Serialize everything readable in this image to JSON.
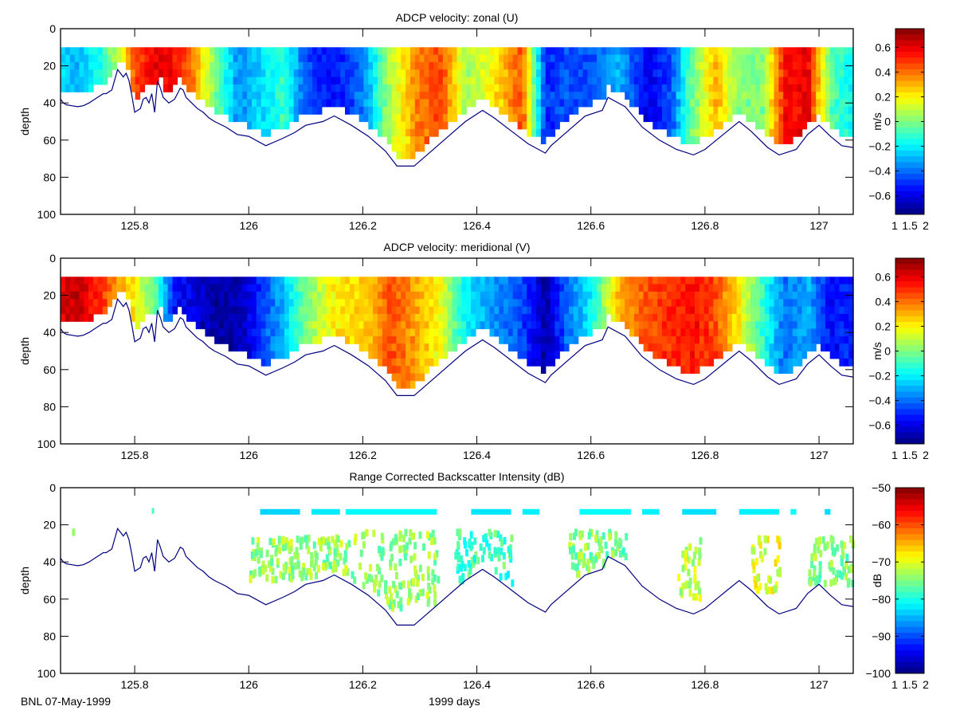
{
  "figure": {
    "footer_left": "BNL 07-May-1999",
    "footer_center": "1999 days"
  },
  "colors": {
    "bottom_line": "#000080",
    "axis": "#000000",
    "background": "#ffffff"
  },
  "chart_data": [
    {
      "type": "heatmap",
      "title": "ADCP velocity: zonal (U)",
      "xlabel": "",
      "ylabel": "depth",
      "xlim": [
        125.67,
        127.06
      ],
      "ylim": [
        100,
        0
      ],
      "y_reversed": true,
      "xticks": [
        125.8,
        126,
        126.2,
        126.4,
        126.6,
        126.8,
        127
      ],
      "xtick_labels": [
        "125.8",
        "126",
        "126.2",
        "126.4",
        "126.6",
        "126.8",
        "127"
      ],
      "yticks": [
        0,
        20,
        40,
        60,
        80,
        100
      ],
      "ytick_labels": [
        "0",
        "20",
        "40",
        "60",
        "80",
        "100"
      ],
      "colormap": "jet",
      "colorbar": {
        "label": "m/s",
        "range": [
          -0.75,
          0.75
        ],
        "ticks": [
          0.6,
          0.4,
          0.2,
          0,
          -0.2,
          -0.4,
          -0.6
        ],
        "tick_labels": [
          "0.6",
          "0.4",
          "0.2",
          "0",
          "-0.2",
          "-0.4",
          "-0.6"
        ],
        "xtick_labels": [
          "1",
          "1.5",
          "2"
        ]
      },
      "top_bin_depth": 10,
      "profile_x": [
        125.67,
        125.7,
        125.74,
        125.78,
        125.8,
        125.84,
        125.87,
        125.9,
        125.94,
        125.98,
        126.02,
        126.06,
        126.1,
        126.15,
        126.2,
        126.25,
        126.3,
        126.34,
        126.38,
        126.43,
        126.48,
        126.52,
        126.56,
        126.6,
        126.65,
        126.7,
        126.74,
        126.78,
        126.82,
        126.86,
        126.9,
        126.94,
        126.98,
        127.02,
        127.06
      ],
      "profile_value": [
        -0.25,
        -0.3,
        -0.15,
        0.2,
        0.45,
        0.6,
        0.55,
        0.4,
        0.0,
        -0.35,
        -0.25,
        -0.1,
        -0.45,
        -0.55,
        -0.4,
        0.1,
        0.4,
        0.45,
        0.05,
        0.2,
        0.45,
        -0.5,
        -0.45,
        -0.45,
        -0.3,
        -0.6,
        -0.45,
        0.0,
        0.3,
        0.0,
        0.0,
        0.55,
        0.6,
        -0.05,
        -0.2
      ]
    },
    {
      "type": "heatmap",
      "title": "ADCP velocity: meridional (V)",
      "xlabel": "",
      "ylabel": "depth",
      "xlim": [
        125.67,
        127.06
      ],
      "ylim": [
        100,
        0
      ],
      "y_reversed": true,
      "xticks": [
        125.8,
        126,
        126.2,
        126.4,
        126.6,
        126.8,
        127
      ],
      "xtick_labels": [
        "125.8",
        "126",
        "126.2",
        "126.4",
        "126.6",
        "126.8",
        "127"
      ],
      "yticks": [
        0,
        20,
        40,
        60,
        80,
        100
      ],
      "ytick_labels": [
        "0",
        "20",
        "40",
        "60",
        "80",
        "100"
      ],
      "colormap": "jet",
      "colorbar": {
        "label": "m/s",
        "range": [
          -0.75,
          0.75
        ],
        "ticks": [
          0.6,
          0.4,
          0.2,
          0,
          -0.2,
          -0.4,
          -0.6
        ],
        "tick_labels": [
          "0.6",
          "0.4",
          "0.2",
          "0",
          "-0.2",
          "-0.4",
          "-0.6"
        ],
        "xtick_labels": [
          "1",
          "1.5",
          "2"
        ]
      },
      "top_bin_depth": 10,
      "profile_x": [
        125.67,
        125.7,
        125.74,
        125.78,
        125.8,
        125.84,
        125.87,
        125.9,
        125.94,
        125.98,
        126.02,
        126.06,
        126.1,
        126.15,
        126.2,
        126.25,
        126.3,
        126.34,
        126.38,
        126.43,
        126.48,
        126.52,
        126.56,
        126.6,
        126.65,
        126.7,
        126.74,
        126.78,
        126.82,
        126.86,
        126.9,
        126.94,
        126.98,
        127.02,
        127.06
      ],
      "profile_value": [
        0.6,
        0.65,
        0.5,
        0.3,
        0.2,
        -0.1,
        -0.55,
        -0.6,
        -0.7,
        -0.7,
        -0.5,
        -0.3,
        0.0,
        0.2,
        0.25,
        0.45,
        0.3,
        0.15,
        -0.2,
        -0.35,
        -0.45,
        -0.7,
        -0.4,
        -0.2,
        0.3,
        0.45,
        0.5,
        0.55,
        0.45,
        0.2,
        -0.1,
        -0.4,
        -0.3,
        -0.55,
        -0.5
      ]
    },
    {
      "type": "heatmap",
      "title": "Range Corrected Backscatter Intensity (dB)",
      "xlabel": "1999 days",
      "ylabel": "depth",
      "xlim": [
        125.67,
        127.06
      ],
      "ylim": [
        100,
        0
      ],
      "y_reversed": true,
      "xticks": [
        125.8,
        126,
        126.2,
        126.4,
        126.6,
        126.8,
        127
      ],
      "xtick_labels": [
        "125.8",
        "126",
        "126.2",
        "126.4",
        "126.6",
        "126.8",
        "127"
      ],
      "yticks": [
        0,
        20,
        40,
        60,
        80,
        100
      ],
      "ytick_labels": [
        "0",
        "20",
        "40",
        "60",
        "80",
        "100"
      ],
      "colormap": "jet",
      "colorbar": {
        "label": "dB",
        "range": [
          -100,
          -50
        ],
        "ticks": [
          -50,
          -60,
          -70,
          -80,
          -90,
          -100
        ],
        "tick_labels": [
          "-50",
          "-60",
          "-70",
          "-80",
          "-90",
          "-100"
        ],
        "xtick_labels": [
          "1",
          "1.5",
          "2"
        ]
      },
      "surface_band": {
        "depth": 13,
        "value_db": -82,
        "segments": [
          [
            126.02,
            126.09
          ],
          [
            126.11,
            126.16
          ],
          [
            126.17,
            126.33
          ],
          [
            126.39,
            126.46
          ],
          [
            126.48,
            126.51
          ],
          [
            126.58,
            126.67
          ],
          [
            126.69,
            126.72
          ],
          [
            126.76,
            126.82
          ],
          [
            126.86,
            126.93
          ],
          [
            126.95,
            126.96
          ],
          [
            127.01,
            127.02
          ]
        ]
      },
      "scatter_clusters": [
        {
          "x": [
            126.0,
            126.16
          ],
          "depth": [
            25,
            48
          ],
          "value_db": -74
        },
        {
          "x": [
            126.16,
            126.33
          ],
          "depth": [
            22,
            63
          ],
          "value_db": -74
        },
        {
          "x": [
            126.36,
            126.46
          ],
          "depth": [
            22,
            50
          ],
          "value_db": -78
        },
        {
          "x": [
            126.56,
            126.66
          ],
          "depth": [
            22,
            45
          ],
          "value_db": -75
        },
        {
          "x": [
            126.75,
            126.79
          ],
          "depth": [
            25,
            58
          ],
          "value_db": -72
        },
        {
          "x": [
            126.88,
            126.93
          ],
          "depth": [
            25,
            55
          ],
          "value_db": -70
        },
        {
          "x": [
            126.98,
            127.06
          ],
          "depth": [
            25,
            50
          ],
          "value_db": -75
        }
      ]
    }
  ],
  "bottom_depth": {
    "x": [
      125.67,
      125.675,
      125.68,
      125.69,
      125.7,
      125.71,
      125.72,
      125.73,
      125.74,
      125.745,
      125.75,
      125.76,
      125.77,
      125.775,
      125.78,
      125.785,
      125.79,
      125.795,
      125.8,
      125.81,
      125.815,
      125.82,
      125.825,
      125.83,
      125.835,
      125.84,
      125.845,
      125.85,
      125.86,
      125.87,
      125.88,
      125.885,
      125.89,
      125.9,
      125.91,
      125.92,
      125.93,
      125.94,
      125.96,
      125.98,
      126.0,
      126.03,
      126.06,
      126.08,
      126.1,
      126.13,
      126.15,
      126.18,
      126.21,
      126.24,
      126.26,
      126.29,
      126.32,
      126.35,
      126.38,
      126.41,
      126.43,
      126.46,
      126.49,
      126.52,
      126.53,
      126.56,
      126.59,
      126.62,
      126.63,
      126.66,
      126.69,
      126.72,
      126.75,
      126.78,
      126.8,
      126.82,
      126.84,
      126.86,
      126.88,
      126.91,
      126.93,
      126.96,
      126.98,
      127.0,
      127.02,
      127.04,
      127.06
    ],
    "depth": [
      38,
      40,
      41,
      41.5,
      42,
      41.5,
      40,
      38,
      36,
      35,
      35,
      33,
      22,
      24,
      26,
      24,
      28,
      36,
      45,
      43,
      38,
      37,
      40,
      35,
      45,
      28,
      32,
      37,
      40,
      38,
      32,
      33,
      37,
      40,
      43,
      45,
      48,
      50,
      53,
      57,
      58,
      63,
      59,
      56,
      52,
      50,
      47,
      52,
      58,
      66,
      74,
      74,
      66,
      58,
      50,
      44,
      48,
      55,
      62,
      67,
      63,
      55,
      47,
      44,
      37,
      42,
      53,
      60,
      65,
      68,
      65,
      60,
      55,
      50,
      55,
      64,
      68,
      65,
      57,
      52,
      58,
      63,
      64
    ]
  }
}
